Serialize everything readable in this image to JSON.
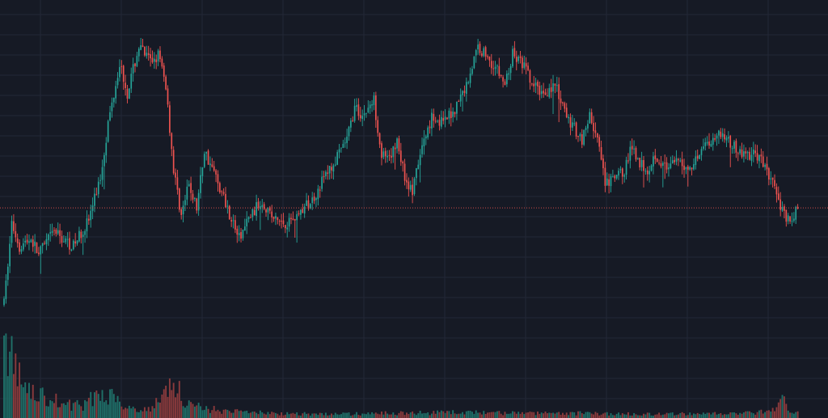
{
  "chart_data": {
    "type": "candlestick",
    "title": "",
    "xlabel": "",
    "ylabel": "",
    "grid": true,
    "price_line": {
      "value": 100,
      "style": "dotted",
      "color": "#ef5350"
    },
    "ylim": [
      72,
      150
    ],
    "volume_max": 100,
    "colors": {
      "background": "#161a25",
      "grid": "#232836",
      "up": "#26a69a",
      "down": "#ef5350",
      "volume_up": "#1f6f68",
      "volume_down": "#8a3a3c"
    },
    "anchors": [
      [
        0,
        75
      ],
      [
        4,
        96
      ],
      [
        8,
        90
      ],
      [
        14,
        92
      ],
      [
        18,
        88
      ],
      [
        26,
        94
      ],
      [
        30,
        92
      ],
      [
        36,
        90
      ],
      [
        44,
        97
      ],
      [
        50,
        108
      ],
      [
        54,
        122
      ],
      [
        60,
        138
      ],
      [
        64,
        130
      ],
      [
        70,
        142
      ],
      [
        76,
        138
      ],
      [
        80,
        140
      ],
      [
        84,
        132
      ],
      [
        88,
        110
      ],
      [
        92,
        98
      ],
      [
        96,
        106
      ],
      [
        100,
        100
      ],
      [
        104,
        115
      ],
      [
        110,
        108
      ],
      [
        116,
        100
      ],
      [
        122,
        92
      ],
      [
        128,
        98
      ],
      [
        134,
        102
      ],
      [
        140,
        97
      ],
      [
        146,
        96
      ],
      [
        152,
        98
      ],
      [
        160,
        102
      ],
      [
        166,
        108
      ],
      [
        172,
        112
      ],
      [
        178,
        118
      ],
      [
        182,
        126
      ],
      [
        186,
        124
      ],
      [
        192,
        128
      ],
      [
        196,
        114
      ],
      [
        200,
        112
      ],
      [
        204,
        118
      ],
      [
        208,
        108
      ],
      [
        212,
        104
      ],
      [
        216,
        114
      ],
      [
        222,
        124
      ],
      [
        228,
        122
      ],
      [
        234,
        126
      ],
      [
        240,
        132
      ],
      [
        246,
        142
      ],
      [
        250,
        140
      ],
      [
        256,
        136
      ],
      [
        260,
        132
      ],
      [
        264,
        140
      ],
      [
        270,
        137
      ],
      [
        274,
        132
      ],
      [
        280,
        130
      ],
      [
        286,
        132
      ],
      [
        290,
        126
      ],
      [
        294,
        122
      ],
      [
        300,
        118
      ],
      [
        304,
        124
      ],
      [
        308,
        118
      ],
      [
        312,
        106
      ],
      [
        318,
        108
      ],
      [
        322,
        110
      ],
      [
        326,
        116
      ],
      [
        330,
        112
      ],
      [
        334,
        110
      ],
      [
        338,
        114
      ],
      [
        344,
        110
      ],
      [
        350,
        112
      ],
      [
        356,
        110
      ],
      [
        362,
        116
      ],
      [
        368,
        118
      ],
      [
        372,
        120
      ],
      [
        378,
        116
      ],
      [
        384,
        114
      ],
      [
        390,
        114
      ],
      [
        396,
        110
      ],
      [
        402,
        102
      ],
      [
        408,
        96
      ],
      [
        412,
        100
      ]
    ],
    "volume_anchors": [
      [
        0,
        100
      ],
      [
        3,
        82
      ],
      [
        6,
        60
      ],
      [
        10,
        40
      ],
      [
        16,
        28
      ],
      [
        22,
        26
      ],
      [
        30,
        18
      ],
      [
        40,
        15
      ],
      [
        50,
        30
      ],
      [
        56,
        30
      ],
      [
        64,
        14
      ],
      [
        76,
        10
      ],
      [
        82,
        28
      ],
      [
        86,
        44
      ],
      [
        90,
        38
      ],
      [
        94,
        22
      ],
      [
        100,
        14
      ],
      [
        110,
        10
      ],
      [
        120,
        8
      ],
      [
        140,
        6
      ],
      [
        160,
        5
      ],
      [
        180,
        5
      ],
      [
        200,
        6
      ],
      [
        240,
        7
      ],
      [
        260,
        6
      ],
      [
        300,
        6
      ],
      [
        320,
        5
      ],
      [
        360,
        5
      ],
      [
        390,
        6
      ],
      [
        400,
        10
      ],
      [
        405,
        24
      ],
      [
        408,
        10
      ],
      [
        412,
        6
      ]
    ]
  }
}
